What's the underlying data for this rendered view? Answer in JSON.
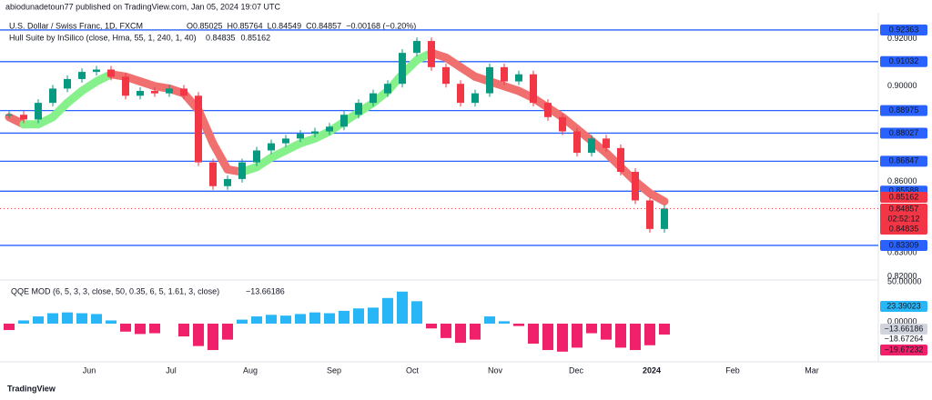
{
  "header": {
    "publisher": "abiodunadetoun77 published on TradingView.com, Jan 05, 2024 19:07 UTC",
    "symbol": "U.S. Dollar / Swiss Franc, 1D, FXCM",
    "ohlc": [
      "O0.85025",
      "H0.85764",
      "L0.84549",
      "C0.84857",
      "−0.00168 (−0.20%)"
    ],
    "hull_title": "Hull Suite by InSilico (close, Hma, 55, 1, 240, 1, 40)",
    "hull_values": [
      "0.84835",
      "0.85162"
    ]
  },
  "price_chart": {
    "closes": [
      0.888,
      0.886,
      0.893,
      0.899,
      0.903,
      0.906,
      0.907,
      0.904,
      0.896,
      0.898,
      0.897,
      0.899,
      0.896,
      0.868,
      0.858,
      0.861,
      0.868,
      0.873,
      0.876,
      0.878,
      0.88,
      0.881,
      0.883,
      0.888,
      0.893,
      0.897,
      0.901,
      0.914,
      0.919,
      0.908,
      0.901,
      0.893,
      0.897,
      0.908,
      0.902,
      0.905,
      0.893,
      0.887,
      0.881,
      0.872,
      0.878,
      0.874,
      0.864,
      0.852,
      0.84,
      0.84857
    ],
    "hull": [
      0.887,
      0.884,
      0.884,
      0.887,
      0.893,
      0.898,
      0.902,
      0.905,
      0.904,
      0.902,
      0.9,
      0.899,
      0.897,
      0.89,
      0.876,
      0.865,
      0.864,
      0.866,
      0.87,
      0.873,
      0.876,
      0.878,
      0.881,
      0.885,
      0.889,
      0.893,
      0.898,
      0.905,
      0.911,
      0.914,
      0.912,
      0.908,
      0.904,
      0.902,
      0.9,
      0.898,
      0.895,
      0.891,
      0.887,
      0.882,
      0.877,
      0.872,
      0.866,
      0.86,
      0.855,
      0.8516
    ],
    "up_color": "#089981",
    "down_color": "#f23645",
    "hull_up_color": "#86f08a",
    "hull_down_color": "#f07070",
    "ylim": [
      0.8197,
      0.9324
    ],
    "yticks": [
      {
        "value": 0.92,
        "label": "0.92000"
      },
      {
        "value": 0.9,
        "label": "0.90000"
      },
      {
        "value": 0.86,
        "label": "0.86000"
      },
      {
        "value": 0.83,
        "label": "0.83000"
      },
      {
        "value": 0.82,
        "label": "0.82000"
      }
    ],
    "levels": [
      {
        "value": 0.92363,
        "label": "0.92363"
      },
      {
        "value": 0.91032,
        "label": "0.91032"
      },
      {
        "value": 0.88975,
        "label": "0.88975"
      },
      {
        "value": 0.88027,
        "label": "0.88027"
      },
      {
        "value": 0.86847,
        "label": "0.86847"
      },
      {
        "value": 0.85588,
        "label": "0.85588"
      },
      {
        "value": 0.83309,
        "label": "0.83309"
      }
    ],
    "level_color": "#2962ff",
    "badges": [
      {
        "value": 0.85162,
        "label": "0.85162"
      },
      {
        "value": 0.84857,
        "label": "0.84857",
        "countdown": "02:52:12"
      },
      {
        "value": 0.84835,
        "label": "0.84835"
      }
    ]
  },
  "x_labels": [
    "Jun",
    "Jul",
    "Aug",
    "Sep",
    "Oct",
    "Nov",
    "Dec",
    "2024",
    "Feb",
    "Mar"
  ],
  "qqe": {
    "title": "QQE MOD (6, 5, 3, 3, close, 50, 0.35, 6, 5, 1.61, 3, close)",
    "last": "−13.66186",
    "values": [
      -8,
      4,
      9,
      13,
      14,
      13,
      12,
      4,
      -10,
      -13,
      -12,
      0,
      -16,
      -28,
      -33,
      -20,
      5,
      9,
      11,
      10,
      12,
      14,
      13,
      16,
      19,
      20,
      32,
      40,
      28,
      -6,
      -18,
      -24,
      -20,
      9,
      3,
      -3,
      -25,
      -33,
      -35,
      -30,
      -12,
      -20,
      -30,
      -33,
      -27,
      -13.66186
    ],
    "pos_color": "#29b6f6",
    "neg_color": "#f0216a",
    "ylim": [
      -44.3,
      54.5
    ],
    "yticks": [
      {
        "value": 50,
        "label": "50.00000"
      },
      {
        "value": 0,
        "label": "0.00000"
      }
    ],
    "badges": [
      {
        "value": 23.39023,
        "label": "23.39023",
        "color": "#29b6f6"
      },
      {
        "value": -13.66186,
        "label": "−13.66186",
        "color": "#d1d4dc"
      },
      {
        "value": -18.67264,
        "label": "−18.67264"
      },
      {
        "value": -19.67232,
        "label": "−19.67232",
        "color": "#f0216a"
      }
    ]
  },
  "footer": "TradingView"
}
